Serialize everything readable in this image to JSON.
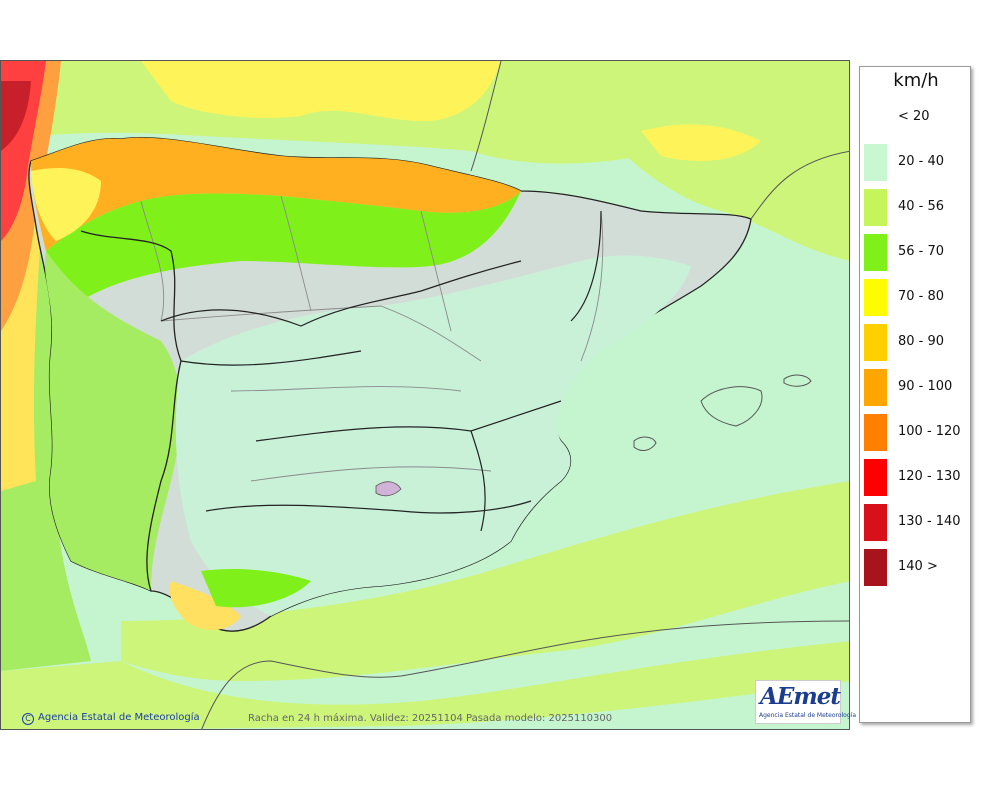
{
  "legend": {
    "unit": "km/h",
    "classes": [
      {
        "label": "< 20",
        "color": "#ffffff"
      },
      {
        "label": "20 - 40",
        "color": "#c8f7d2"
      },
      {
        "label": "40 - 56",
        "color": "#c5f55a"
      },
      {
        "label": "56 - 70",
        "color": "#7ff01a"
      },
      {
        "label": "70 - 80",
        "color": "#fffb00"
      },
      {
        "label": "80 - 90",
        "color": "#ffd000"
      },
      {
        "label": "90 - 100",
        "color": "#ffa600"
      },
      {
        "label": "100 - 120",
        "color": "#ff8000"
      },
      {
        "label": "120 - 130",
        "color": "#ff0000"
      },
      {
        "label": "130 - 140",
        "color": "#d8101a"
      },
      {
        "label": "140 >",
        "color": "#a8141c"
      }
    ]
  },
  "footer": {
    "copyright": "Agencia Estatal de Meteorología",
    "caption": "Racha en 24 h máxima. Validez: 20251104 Pasada modelo: 2025110300"
  },
  "logo": {
    "word": "AEmet",
    "subtitle": "Agencia Estatal de Meteorología"
  },
  "map": {
    "colors": {
      "sea_light": "#c5f5cf",
      "band_green": "#cdf57a",
      "band_mid": "#a6ec62",
      "strong_green": "#7ff01a",
      "yellow": "#fffb00",
      "orange": "#ffb020",
      "red": "#ff4040",
      "darkred": "#c8202a",
      "relief": "#d3ddd7",
      "border": "#222222",
      "region_border": "#8a8a8a"
    }
  }
}
